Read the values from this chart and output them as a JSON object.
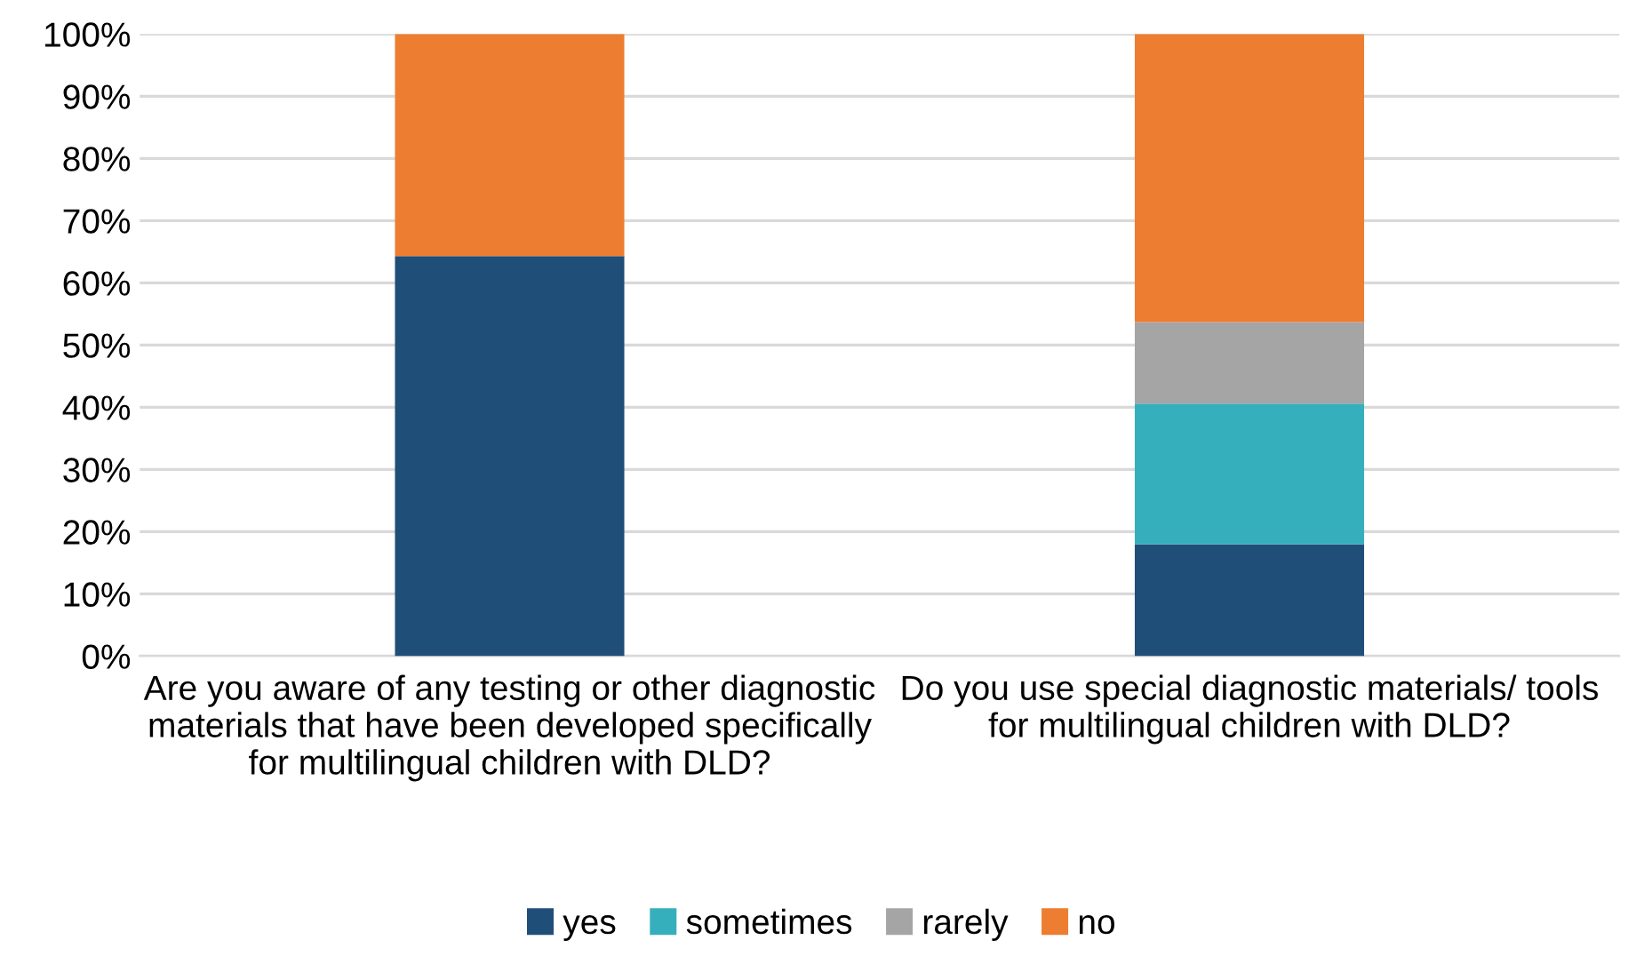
{
  "chart_data": {
    "type": "bar",
    "stacked": true,
    "categories": [
      "Are you aware of any testing or other diagnostic materials that have been developed specifically for multilingual children with DLD?",
      "Do you use special diagnostic materials/ tools for multilingual children with DLD?"
    ],
    "series": [
      {
        "name": "yes",
        "color": "#1f4e79",
        "values": [
          64.3,
          18.0
        ]
      },
      {
        "name": "sometimes",
        "color": "#36afbd",
        "values": [
          0,
          22.6
        ]
      },
      {
        "name": "rarely",
        "color": "#a5a5a5",
        "values": [
          0,
          13.1
        ]
      },
      {
        "name": "no",
        "color": "#ed7d31",
        "values": [
          35.7,
          46.3
        ]
      }
    ],
    "ylim": [
      0,
      100
    ],
    "yticks": [
      {
        "value": 0,
        "label": "0%"
      },
      {
        "value": 10,
        "label": "10%"
      },
      {
        "value": 20,
        "label": "20%"
      },
      {
        "value": 30,
        "label": "30%"
      },
      {
        "value": 40,
        "label": "40%"
      },
      {
        "value": 50,
        "label": "50%"
      },
      {
        "value": 60,
        "label": "60%"
      },
      {
        "value": 70,
        "label": "70%"
      },
      {
        "value": 80,
        "label": "80%"
      },
      {
        "value": 90,
        "label": "90%"
      },
      {
        "value": 100,
        "label": "100%"
      }
    ],
    "grid": "y",
    "legend": "bottom"
  }
}
